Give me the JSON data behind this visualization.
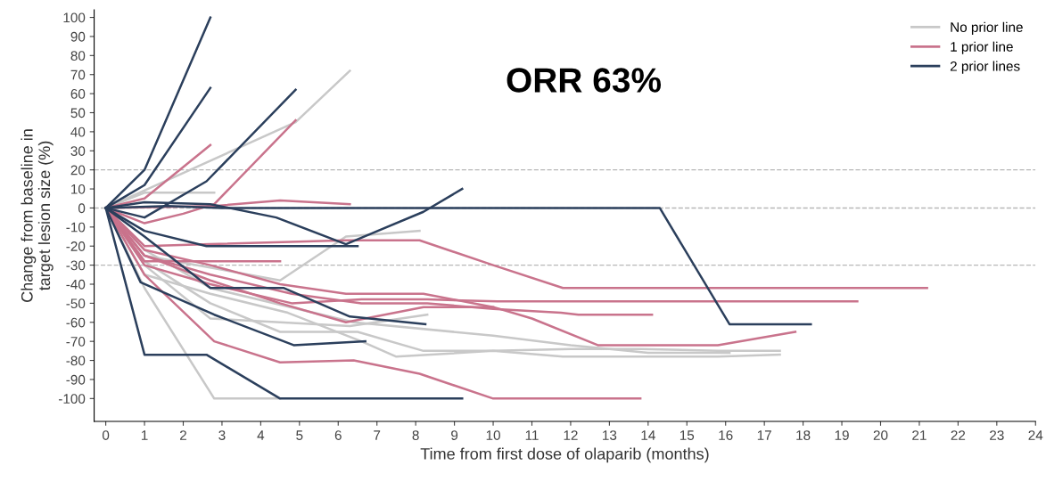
{
  "chart_data": {
    "type": "line",
    "xlabel": "Time from first dose of olaparib (months)",
    "ylabel": "Change from baseline in\ntarget lesion size (%)",
    "annotations": [
      "ORR 63%"
    ],
    "xlim": [
      -0.3,
      24
    ],
    "xticks": [
      0,
      1,
      2,
      3,
      4,
      5,
      6,
      7,
      8,
      9,
      10,
      11,
      12,
      13,
      14,
      15,
      16,
      17,
      18,
      19,
      20,
      21,
      22,
      23,
      24
    ],
    "ylim": [
      -112,
      104
    ],
    "yticks": [
      -100,
      -90,
      -80,
      -70,
      -60,
      -50,
      -40,
      -30,
      -20,
      -10,
      0,
      10,
      20,
      30,
      40,
      50,
      60,
      70,
      80,
      90,
      100
    ],
    "grid": false,
    "legend": "top right",
    "line_style": "solid",
    "ref_lines": [
      {
        "axis": "y",
        "value": 20,
        "color": "#b8b8b8",
        "line_style": "dashed"
      },
      {
        "axis": "y",
        "value": 0,
        "color": "#b8b8b8",
        "line_style": "dashed"
      },
      {
        "axis": "y",
        "value": -30,
        "color": "#b8b8b8",
        "line_style": "dashed"
      }
    ],
    "series": [
      {
        "name": "No prior line",
        "color": "#c8c8c8",
        "x": [
          0,
          1,
          2.8
        ],
        "values": [
          0,
          8,
          8
        ]
      },
      {
        "color": "#c8c8c8",
        "x": [
          0,
          4.9,
          6.3
        ],
        "values": [
          0,
          45,
          72
        ]
      },
      {
        "color": "#c8c8c8",
        "x": [
          0,
          1,
          4.5,
          6.2,
          8.1
        ],
        "values": [
          0,
          -25,
          -38,
          -15,
          -12
        ]
      },
      {
        "color": "#c8c8c8",
        "x": [
          0,
          1,
          2.8,
          4.5
        ],
        "values": [
          0,
          -42,
          -100,
          -100
        ]
      },
      {
        "color": "#c8c8c8",
        "x": [
          0,
          1,
          2.7,
          4.5,
          6.3,
          8.3
        ],
        "values": [
          0,
          -30,
          -58,
          -60,
          -62,
          -56
        ]
      },
      {
        "color": "#c8c8c8",
        "x": [
          0,
          1,
          2.7,
          4.7,
          6.6,
          7.5,
          10,
          11.8,
          13.8,
          15.8,
          17.4
        ],
        "values": [
          0,
          -35,
          -45,
          -55,
          -70,
          -78,
          -75,
          -78,
          -78,
          -78,
          -77
        ]
      },
      {
        "color": "#c8c8c8",
        "x": [
          0,
          1,
          2.7,
          4.5,
          6.5,
          8.2,
          10,
          12,
          13.8,
          15.8,
          17.4
        ],
        "values": [
          0,
          -28,
          -50,
          -65,
          -65,
          -75,
          -75,
          -74,
          -74,
          -75,
          -75
        ]
      },
      {
        "color": "#c8c8c8",
        "x": [
          0,
          1,
          2.7,
          6.4,
          10,
          12,
          14,
          16.1
        ],
        "values": [
          0,
          -22,
          -42,
          -60,
          -67,
          -72,
          -76,
          -76
        ]
      },
      {
        "name": "1 prior line",
        "color": "#c9738c",
        "x": [
          0,
          1,
          2.7
        ],
        "values": [
          0,
          5,
          33
        ]
      },
      {
        "color": "#c9738c",
        "x": [
          0,
          1,
          2,
          2.8,
          4.9
        ],
        "values": [
          0,
          -8,
          -3,
          2,
          46
        ]
      },
      {
        "color": "#c9738c",
        "x": [
          0,
          2.8,
          4.5,
          6.3
        ],
        "values": [
          0,
          1,
          4,
          2
        ]
      },
      {
        "color": "#c9738c",
        "x": [
          0,
          1,
          2.7,
          6.2,
          8.1,
          10,
          11.8,
          13.8,
          16.1,
          19.3,
          21.2
        ],
        "values": [
          0,
          -20,
          -19,
          -17,
          -17,
          -30,
          -42,
          -42,
          -42,
          -42,
          -42
        ]
      },
      {
        "color": "#c9738c",
        "x": [
          0,
          1,
          2.7,
          4.5
        ],
        "values": [
          0,
          -28,
          -28,
          -28
        ]
      },
      {
        "color": "#c9738c",
        "x": [
          0,
          1,
          2.7,
          4.8,
          6.6,
          8.3,
          10.1,
          10.3,
          13.8,
          15.7,
          19.4
        ],
        "values": [
          0,
          -30,
          -40,
          -50,
          -48,
          -48,
          -49,
          -49,
          -49,
          -49,
          -49
        ]
      },
      {
        "color": "#c9738c",
        "x": [
          0,
          1,
          2.7,
          4.8,
          6.6,
          8.3,
          10,
          11.75,
          12.2,
          14.1
        ],
        "values": [
          0,
          -25,
          -35,
          -45,
          -50,
          -50,
          -53,
          -55,
          -56,
          -56
        ]
      },
      {
        "color": "#c9738c",
        "x": [
          0,
          1,
          2.7,
          4.5,
          6.2,
          8.2,
          10,
          11,
          12.7,
          13.9,
          15.8,
          17.8
        ],
        "values": [
          0,
          -22,
          -30,
          -40,
          -45,
          -45,
          -52,
          -58,
          -72,
          -72,
          -72,
          -65
        ]
      },
      {
        "color": "#c9738c",
        "x": [
          0,
          1,
          2.8,
          4.5,
          6.4,
          8.1,
          10,
          11.8,
          13.8
        ],
        "values": [
          0,
          -35,
          -70,
          -81,
          -80,
          -87,
          -100,
          -100,
          -100
        ]
      },
      {
        "color": "#c9738c",
        "x": [
          0,
          1,
          2.7,
          4.5,
          6.2,
          8.2,
          10
        ],
        "values": [
          0,
          -25,
          -38,
          -50,
          -60,
          -52,
          -52
        ]
      },
      {
        "name": "2 prior lines",
        "color": "#2b3f5c",
        "x": [
          0,
          1,
          2.7
        ],
        "values": [
          0,
          20,
          100
        ]
      },
      {
        "color": "#2b3f5c",
        "x": [
          0,
          1,
          2.7
        ],
        "values": [
          0,
          12,
          63
        ]
      },
      {
        "color": "#2b3f5c",
        "x": [
          0,
          1,
          2.6,
          4.9
        ],
        "values": [
          0,
          -5,
          14,
          62
        ]
      },
      {
        "color": "#2b3f5c",
        "x": [
          0,
          1.6,
          3,
          6.6,
          9,
          10.5,
          12.3,
          14.3,
          16.1,
          18.2
        ],
        "values": [
          0,
          1,
          0,
          0,
          0,
          0,
          0,
          0,
          -61,
          -61
        ]
      },
      {
        "color": "#2b3f5c",
        "x": [
          0,
          1,
          2.7,
          4.4,
          6.2,
          8.2,
          9.2
        ],
        "values": [
          0,
          3,
          2,
          -5,
          -19,
          -2,
          10
        ]
      },
      {
        "color": "#2b3f5c",
        "x": [
          0,
          1,
          2.6,
          4.5,
          6.1,
          6.5
        ],
        "values": [
          0,
          -12,
          -20,
          -20,
          -20,
          -20
        ]
      },
      {
        "color": "#2b3f5c",
        "x": [
          0,
          1,
          2.7,
          4.6,
          6.3,
          8.25
        ],
        "values": [
          0,
          -15,
          -42,
          -42,
          -57,
          -61
        ]
      },
      {
        "color": "#2b3f5c",
        "x": [
          0,
          0.9,
          2.8,
          4.85,
          6.7
        ],
        "values": [
          0,
          -39,
          -56,
          -72,
          -70
        ]
      },
      {
        "color": "#2b3f5c",
        "x": [
          0,
          1,
          2.6,
          4.5,
          6.5,
          9.2
        ],
        "values": [
          0,
          -77,
          -77,
          -100,
          -100,
          -100
        ]
      }
    ]
  }
}
